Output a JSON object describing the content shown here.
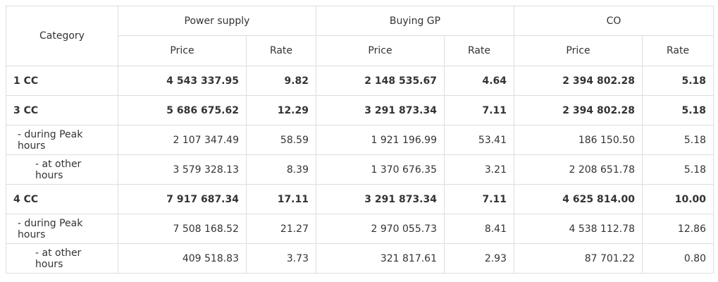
{
  "table": {
    "header": {
      "category": "Category",
      "groups": [
        "Power supply",
        "Buying GP",
        "CO"
      ],
      "sub": [
        "Price",
        "Rate"
      ]
    },
    "rows": [
      {
        "label": "1 CC",
        "bold": true,
        "indent": 0,
        "cells": [
          "4 543 337.95",
          "9.82",
          "2 148 535.67",
          "4.64",
          "2 394 802.28",
          "5.18"
        ]
      },
      {
        "label": "3 CC",
        "bold": true,
        "indent": 0,
        "cells": [
          "5 686 675.62",
          "12.29",
          "3 291 873.34",
          "7.11",
          "2 394 802.28",
          "5.18"
        ]
      },
      {
        "label": "- during Peak hours",
        "bold": false,
        "indent": 1,
        "cells": [
          "2 107 347.49",
          "58.59",
          "1 921 196.99",
          "53.41",
          "186 150.50",
          "5.18"
        ]
      },
      {
        "label": "- at other hours",
        "bold": false,
        "indent": 2,
        "cells": [
          "3 579 328.13",
          "8.39",
          "1 370 676.35",
          "3.21",
          "2 208 651.78",
          "5.18"
        ]
      },
      {
        "label": "4 CC",
        "bold": true,
        "indent": 0,
        "cells": [
          "7 917 687.34",
          "17.11",
          "3 291 873.34",
          "7.11",
          "4 625 814.00",
          "10.00"
        ]
      },
      {
        "label": "- during Peak hours",
        "bold": false,
        "indent": 1,
        "cells": [
          "7 508 168.52",
          "21.27",
          "2 970 055.73",
          "8.41",
          "4 538 112.78",
          "12.86"
        ]
      },
      {
        "label": "- at other hours",
        "bold": false,
        "indent": 2,
        "cells": [
          "409 518.83",
          "3.73",
          "321 817.61",
          "2.93",
          "87 701.22",
          "0.80"
        ]
      }
    ]
  }
}
